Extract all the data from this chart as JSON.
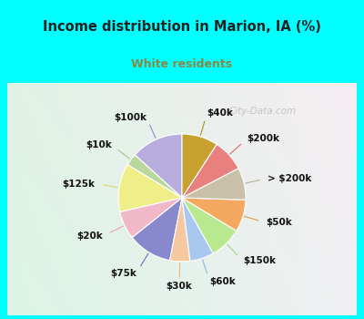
{
  "title": "Income distribution in Marion, IA (%)",
  "subtitle": "White residents",
  "watermark": "City-Data.com",
  "labels": [
    "$100k",
    "$10k",
    "$125k",
    "$20k",
    "$75k",
    "$30k",
    "$60k",
    "$150k",
    "$50k",
    "> $200k",
    "$200k",
    "$40k"
  ],
  "values": [
    13,
    3,
    12,
    7,
    11,
    5,
    6,
    8,
    8,
    8,
    8,
    9
  ],
  "colors": [
    "#b8aedd",
    "#b8d8a0",
    "#f0ee88",
    "#f0b8c8",
    "#8888cc",
    "#f5c8a0",
    "#a8c8f0",
    "#b8e890",
    "#f5a860",
    "#c8c0a8",
    "#e88080",
    "#c8a030"
  ],
  "background_top": "#00ffff",
  "background_chart_tl": "#e0f5e8",
  "background_chart_br": "#c8e8f8",
  "title_color": "#222222",
  "subtitle_color": "#888844",
  "label_fontsize": 7.5,
  "startangle": 90,
  "label_line_colors": [
    "#9090cc",
    "#a0c890",
    "#d8d870",
    "#e8a0b0",
    "#7070bb",
    "#e0b888",
    "#90b8e0",
    "#a0d878",
    "#e09850",
    "#b8b098",
    "#d87070",
    "#b09020"
  ]
}
